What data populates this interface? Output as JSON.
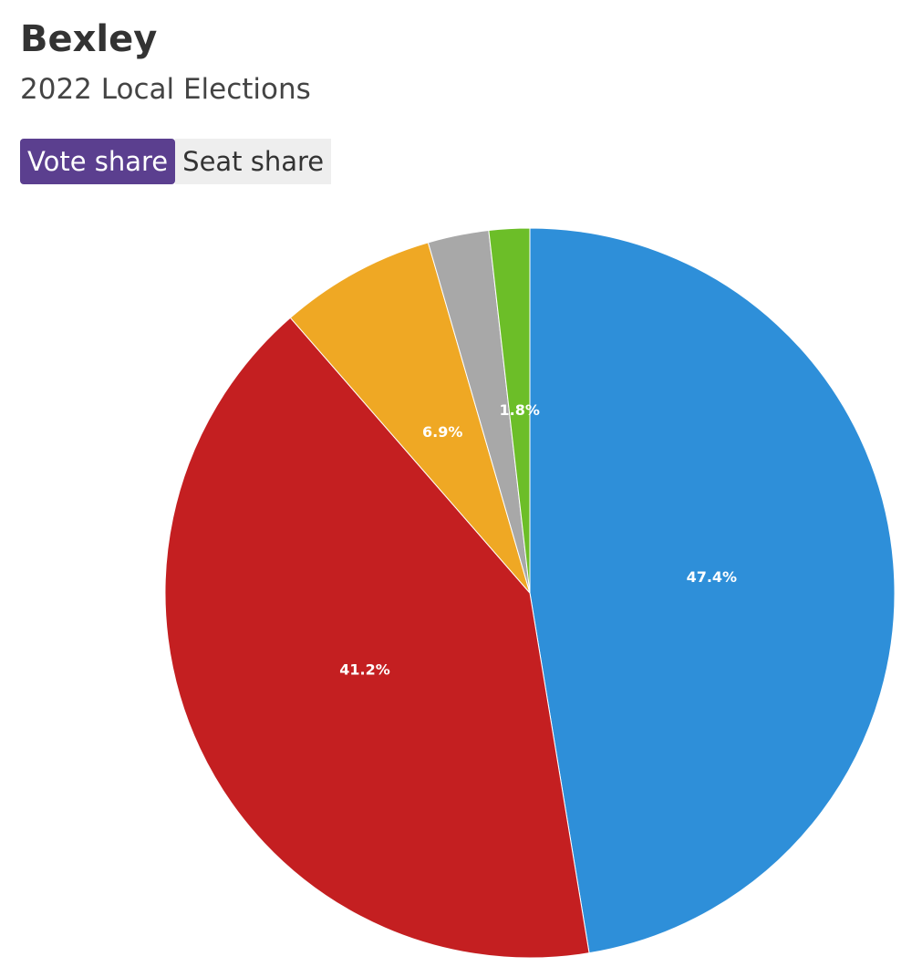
{
  "chart_data": {
    "type": "pie",
    "title": "Bexley",
    "subtitle": "2022 Local Elections",
    "values": [
      47.4,
      41.2,
      6.9,
      2.7,
      1.8
    ],
    "value_labels": [
      "47.4%",
      "41.2%",
      "6.9%",
      null,
      "1.8%"
    ],
    "colors": [
      "#2e8fd9",
      "#c41f21",
      "#efa824",
      "#a8a8a8",
      "#6cbe28"
    ],
    "start_angle": 0,
    "direction": "clockwise"
  },
  "controls": {
    "tabs": [
      "Vote share",
      "Seat share"
    ],
    "active": 0
  }
}
